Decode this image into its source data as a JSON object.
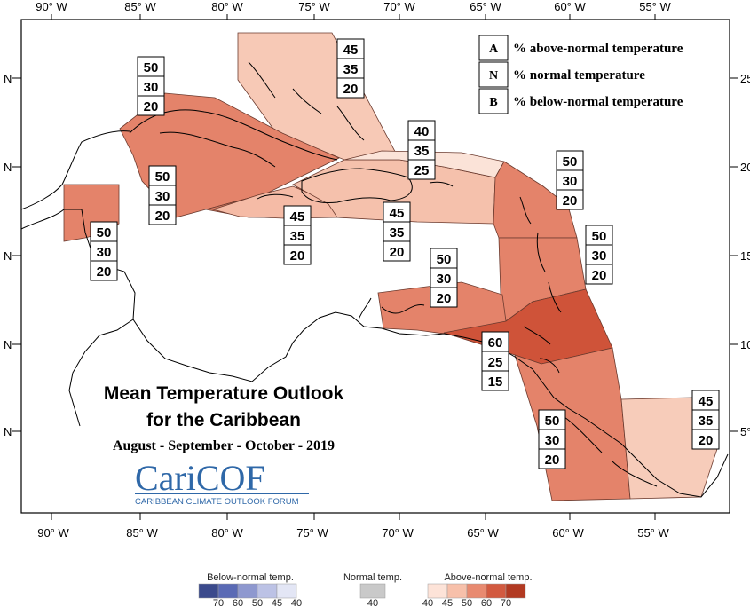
{
  "title": {
    "line1": "Mean Temperature Outlook",
    "line2": "for the Caribbean",
    "period": "August - September - October - 2019"
  },
  "logo": {
    "name": "CariCOF",
    "tagline": "CARIBBEAN CLIMATE OUTLOOK FORUM"
  },
  "legend": {
    "items": [
      {
        "key": "A",
        "label": "% above-normal temperature"
      },
      {
        "key": "N",
        "label": "% normal temperature"
      },
      {
        "key": "B",
        "label": "% below-normal temperature"
      }
    ]
  },
  "axes": {
    "longitude_labels": [
      "90° W",
      "85° W",
      "80° W",
      "75° W",
      "70° W",
      "65° W",
      "60° W",
      "55° W"
    ],
    "latitude_labels_left": [
      "N",
      "N",
      "N",
      "N",
      "N"
    ],
    "latitude_labels_right": [
      "25",
      "20",
      "15",
      "10",
      "5°"
    ]
  },
  "regions": [
    {
      "id": "bahamas",
      "above": "45",
      "normal": "35",
      "below": "20",
      "color": "#f7c9b6"
    },
    {
      "id": "cuba",
      "above": "50",
      "normal": "30",
      "below": "20",
      "color": "#e4836a"
    },
    {
      "id": "belize",
      "above": "50",
      "normal": "30",
      "below": "20",
      "color": "#e4836a"
    },
    {
      "id": "cayman",
      "above": "50",
      "normal": "30",
      "below": "20",
      "color": "#e4836a"
    },
    {
      "id": "jamaica",
      "above": "45",
      "normal": "35",
      "below": "20",
      "color": "#f5bba6"
    },
    {
      "id": "hispaniola",
      "above": "45",
      "normal": "35",
      "below": "20",
      "color": "#f5c1ac"
    },
    {
      "id": "turks-caicos",
      "above": "40",
      "normal": "35",
      "below": "25",
      "color": "#fbe3d8"
    },
    {
      "id": "leeward-islands",
      "above": "50",
      "normal": "30",
      "below": "20",
      "color": "#e4836a"
    },
    {
      "id": "windward-islands",
      "above": "50",
      "normal": "30",
      "below": "20",
      "color": "#e4836a"
    },
    {
      "id": "abc-islands",
      "above": "50",
      "normal": "30",
      "below": "20",
      "color": "#e4836a"
    },
    {
      "id": "trinidad",
      "above": "60",
      "normal": "25",
      "below": "15",
      "color": "#cf5339"
    },
    {
      "id": "guyana",
      "above": "50",
      "normal": "30",
      "below": "20",
      "color": "#e4836a"
    },
    {
      "id": "suriname",
      "above": "45",
      "normal": "35",
      "below": "20",
      "color": "#f7ccba"
    }
  ],
  "scale": {
    "below_title": "Below-normal temp.",
    "normal_title": "Normal temp.",
    "above_title": "Above-normal temp.",
    "below_ticks": [
      "70",
      "60",
      "50",
      "45",
      "40"
    ],
    "normal_ticks": [
      "40"
    ],
    "above_ticks": [
      "40",
      "45",
      "50",
      "60",
      "70"
    ],
    "below_colors": [
      "#3b4a8c",
      "#5a6ab5",
      "#8e98cf",
      "#bcc2e5",
      "#e3e6f5"
    ],
    "normal_color": "#c9c9c9",
    "above_colors": [
      "#fde3d8",
      "#f7c0aa",
      "#e88a70",
      "#d25a40",
      "#b23a22"
    ]
  }
}
